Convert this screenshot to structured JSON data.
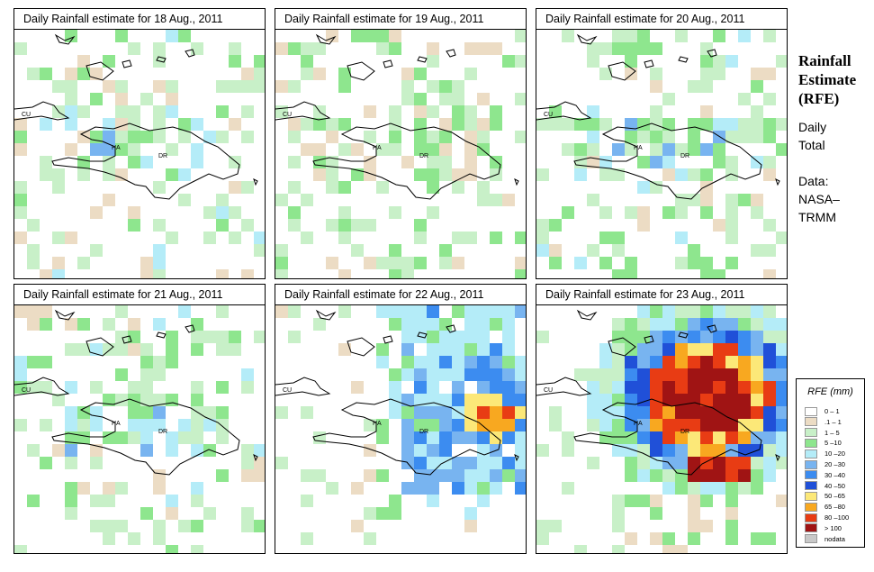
{
  "panels": [
    {
      "title": "Daily Rainfall estimate for  18 Aug., 2011",
      "seed": 18,
      "intensity": 0
    },
    {
      "title": "Daily Rainfall estimate for  19 Aug., 2011",
      "seed": 19,
      "intensity": 1
    },
    {
      "title": "Daily Rainfall estimate for  20 Aug., 2011",
      "seed": 20,
      "intensity": 2
    },
    {
      "title": "Daily Rainfall estimate for  21 Aug., 2011",
      "seed": 21,
      "intensity": 3
    },
    {
      "title": "Daily Rainfall estimate for  22 Aug., 2011",
      "seed": 22,
      "intensity": 4
    },
    {
      "title": "Daily Rainfall estimate for  23 Aug., 2011",
      "seed": 23,
      "intensity": 5
    }
  ],
  "map_labels": {
    "cuba": "CU",
    "haiti": "HA",
    "dominican_republic": "DR"
  },
  "side": {
    "title_line1": "Rainfall",
    "title_line2": "Estimate",
    "title_line3": "(RFE)",
    "period_line1": "Daily",
    "period_line2": "Total",
    "data_line1": "Data:",
    "data_line2": "NASA–",
    "data_line3": "TRMM"
  },
  "legend": {
    "title": "RFE (mm)",
    "items": [
      {
        "label": "0 – 1",
        "color": "#ffffff"
      },
      {
        "label": ".1 – 1",
        "color": "#ecdcc4"
      },
      {
        "label": "1 – 5",
        "color": "#c8f0c8"
      },
      {
        "label": "5 –10",
        "color": "#8ee68e"
      },
      {
        "label": "10 –20",
        "color": "#b4ecf8"
      },
      {
        "label": "20 –30",
        "color": "#78b4f0"
      },
      {
        "label": "30 –40",
        "color": "#3c8cf0"
      },
      {
        "label": "40 –50",
        "color": "#2050d8"
      },
      {
        "label": "50 –65",
        "color": "#fce878"
      },
      {
        "label": "65 –80",
        "color": "#f8a820"
      },
      {
        "label": "80 –100",
        "color": "#e83c14"
      },
      {
        "label": "> 100",
        "color": "#a01414"
      },
      {
        "label": "nodata",
        "color": "#c8c8c8"
      }
    ]
  }
}
